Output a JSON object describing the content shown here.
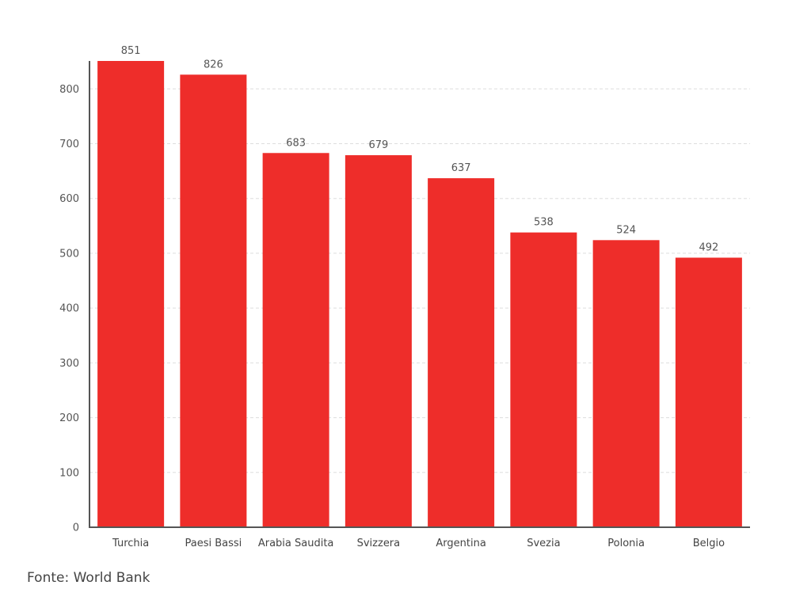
{
  "source_note": "Fonte: World Bank",
  "colors": {
    "bar": "#ee2d2a",
    "axis": "#555555",
    "grid": "#dddddd",
    "label": "#555555"
  },
  "chart_data": {
    "type": "bar",
    "categories": [
      "Turchia",
      "Paesi Bassi",
      "Arabia Saudita",
      "Svizzera",
      "Argentina",
      "Svezia",
      "Polonia",
      "Belgio"
    ],
    "values": [
      851,
      826,
      683,
      679,
      637,
      538,
      524,
      492
    ],
    "data_labels": [
      "851",
      "826",
      "683",
      "679",
      "637",
      "538",
      "524",
      "492"
    ],
    "ylim": [
      0,
      851
    ],
    "yticks": [
      0,
      100,
      200,
      300,
      400,
      500,
      600,
      700,
      800
    ],
    "grid": true,
    "legend": "none"
  }
}
